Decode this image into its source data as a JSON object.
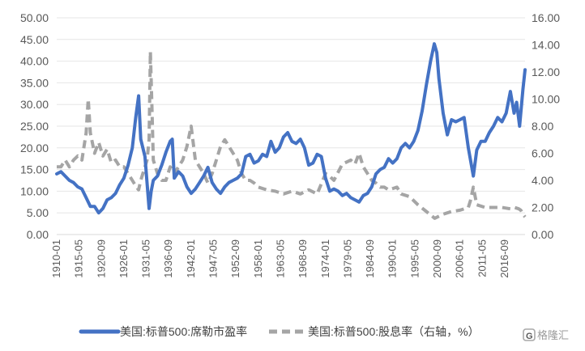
{
  "chart_data": {
    "type": "line",
    "y_left": {
      "ylim": [
        0,
        50
      ],
      "ticks": [
        "0.00",
        "5.00",
        "10.00",
        "15.00",
        "20.00",
        "25.00",
        "30.00",
        "35.00",
        "40.00",
        "45.00",
        "50.00"
      ]
    },
    "y_right": {
      "ylim": [
        0,
        16
      ],
      "ticks": [
        "0.00",
        "2.00",
        "4.00",
        "6.00",
        "8.00",
        "10.00",
        "12.00",
        "14.00",
        "16.00"
      ]
    },
    "x_ticks": [
      "1910-01",
      "1915-05",
      "1920-09",
      "1926-01",
      "1931-05",
      "1936-09",
      "1942-01",
      "1947-05",
      "1952-09",
      "1958-01",
      "1963-05",
      "1968-09",
      "1974-01",
      "1979-05",
      "1984-09",
      "1990-01",
      "1995-05",
      "2000-09",
      "2006-01",
      "2011-05",
      "2016-09"
    ],
    "xlim": [
      1910.0,
      2021.5
    ],
    "grid": "horizontal",
    "legend_position": "bottom",
    "series": [
      {
        "name": "美国:标普500:席勒市盈率",
        "axis": "left",
        "color": "#4472C4",
        "style": "solid",
        "x": [
          1910.0,
          1911.0,
          1912.0,
          1913.0,
          1914.0,
          1915.0,
          1916.0,
          1917.0,
          1918.0,
          1919.0,
          1920.0,
          1921.0,
          1922.0,
          1923.0,
          1924.0,
          1925.0,
          1926.0,
          1927.0,
          1928.0,
          1928.8,
          1929.5,
          1930.0,
          1931.0,
          1932.0,
          1932.5,
          1933.0,
          1934.0,
          1935.0,
          1936.0,
          1937.0,
          1937.5,
          1938.0,
          1939.0,
          1940.0,
          1941.0,
          1942.0,
          1943.0,
          1944.0,
          1945.0,
          1946.0,
          1947.0,
          1948.0,
          1949.0,
          1950.0,
          1951.0,
          1952.0,
          1953.0,
          1954.0,
          1955.0,
          1956.0,
          1957.0,
          1958.0,
          1959.0,
          1960.0,
          1961.0,
          1962.0,
          1963.0,
          1964.0,
          1965.0,
          1966.0,
          1967.0,
          1968.0,
          1969.0,
          1970.0,
          1971.0,
          1972.0,
          1973.0,
          1974.0,
          1975.0,
          1976.0,
          1977.0,
          1978.0,
          1979.0,
          1980.0,
          1981.0,
          1982.0,
          1983.0,
          1984.0,
          1985.0,
          1986.0,
          1987.0,
          1988.0,
          1989.0,
          1990.0,
          1991.0,
          1992.0,
          1993.0,
          1994.0,
          1995.0,
          1996.0,
          1997.0,
          1998.0,
          1999.0,
          1999.9,
          2000.5,
          2001.0,
          2002.0,
          2003.0,
          2004.0,
          2005.0,
          2006.0,
          2007.0,
          2008.0,
          2009.2,
          2010.0,
          2011.0,
          2012.0,
          2013.0,
          2014.0,
          2015.0,
          2016.0,
          2017.0,
          2018.0,
          2018.9,
          2019.5,
          2020.2,
          2021.0,
          2021.5
        ],
        "y": [
          14.0,
          14.5,
          13.5,
          12.5,
          12.0,
          11.0,
          10.5,
          8.5,
          6.5,
          6.5,
          5.0,
          6.0,
          8.0,
          8.5,
          9.5,
          11.5,
          13.0,
          16.0,
          20.0,
          27.0,
          32.0,
          22.0,
          18.0,
          6.0,
          10.0,
          12.5,
          13.5,
          16.0,
          19.0,
          21.5,
          22.0,
          13.0,
          14.5,
          13.5,
          11.0,
          9.5,
          10.5,
          12.0,
          13.5,
          15.5,
          12.0,
          10.5,
          9.5,
          11.0,
          12.0,
          12.5,
          13.0,
          14.0,
          18.0,
          18.5,
          16.5,
          17.0,
          18.5,
          18.0,
          21.5,
          19.0,
          20.0,
          22.5,
          23.5,
          21.5,
          21.0,
          22.0,
          20.0,
          16.0,
          16.5,
          18.5,
          18.0,
          13.0,
          10.0,
          10.5,
          10.0,
          9.0,
          9.5,
          8.5,
          8.0,
          7.5,
          9.0,
          9.5,
          11.0,
          14.0,
          15.0,
          15.5,
          17.5,
          16.5,
          17.5,
          20.0,
          21.0,
          20.0,
          21.5,
          24.0,
          28.5,
          34.5,
          40.0,
          44.0,
          42.0,
          36.0,
          28.0,
          23.0,
          26.5,
          26.0,
          26.5,
          27.0,
          20.0,
          13.5,
          19.5,
          21.5,
          21.5,
          23.5,
          25.0,
          27.0,
          26.0,
          28.0,
          33.0,
          28.0,
          30.5,
          25.0,
          33.5,
          38.0
        ]
      },
      {
        "name": "美国:标普500:股息率（右轴，%）",
        "axis": "right",
        "color": "#A5A5A5",
        "style": "dashed",
        "x": [
          1910.0,
          1911.0,
          1912.0,
          1913.0,
          1914.0,
          1915.0,
          1916.0,
          1917.0,
          1917.5,
          1918.0,
          1919.0,
          1920.0,
          1921.0,
          1922.0,
          1923.0,
          1924.0,
          1925.0,
          1926.0,
          1927.0,
          1928.0,
          1929.0,
          1929.5,
          1930.0,
          1931.0,
          1931.5,
          1932.0,
          1932.3,
          1932.7,
          1933.0,
          1934.0,
          1935.0,
          1936.0,
          1937.0,
          1938.0,
          1939.0,
          1940.0,
          1941.0,
          1942.0,
          1943.0,
          1944.0,
          1945.0,
          1946.0,
          1947.0,
          1948.0,
          1949.0,
          1950.0,
          1951.0,
          1952.0,
          1953.0,
          1954.0,
          1955.0,
          1956.0,
          1957.0,
          1958.0,
          1960.0,
          1962.0,
          1964.0,
          1966.0,
          1968.0,
          1970.0,
          1972.0,
          1974.0,
          1975.0,
          1976.0,
          1978.0,
          1980.0,
          1981.0,
          1982.0,
          1983.0,
          1984.0,
          1985.0,
          1986.0,
          1987.0,
          1988.0,
          1989.0,
          1990.0,
          1991.0,
          1992.0,
          1994.0,
          1996.0,
          1998.0,
          2000.0,
          2002.0,
          2004.0,
          2006.0,
          2008.0,
          2008.5,
          2009.2,
          2010.0,
          2012.0,
          2014.0,
          2016.0,
          2018.0,
          2019.0,
          2020.0,
          2020.5,
          2021.0,
          2021.5
        ],
        "y": [
          5.0,
          5.0,
          5.5,
          5.0,
          5.5,
          5.8,
          5.5,
          7.5,
          10.0,
          7.5,
          6.0,
          6.8,
          5.8,
          6.3,
          5.3,
          5.5,
          5.0,
          5.0,
          4.5,
          4.0,
          3.5,
          3.3,
          4.0,
          5.0,
          5.5,
          7.0,
          13.5,
          9.0,
          5.5,
          4.5,
          4.0,
          4.0,
          5.0,
          4.5,
          5.0,
          5.5,
          6.5,
          8.0,
          5.5,
          5.0,
          4.5,
          3.8,
          4.5,
          5.5,
          6.5,
          7.0,
          6.5,
          6.0,
          5.5,
          4.5,
          4.0,
          4.0,
          3.8,
          3.5,
          3.3,
          3.2,
          3.0,
          3.2,
          3.0,
          3.3,
          3.0,
          4.5,
          4.3,
          4.0,
          5.2,
          5.5,
          5.2,
          6.0,
          5.0,
          4.5,
          4.0,
          3.8,
          3.5,
          3.5,
          3.3,
          3.4,
          3.5,
          3.0,
          2.8,
          2.2,
          1.7,
          1.2,
          1.5,
          1.7,
          1.8,
          2.0,
          2.5,
          3.5,
          2.2,
          2.0,
          2.0,
          2.0,
          1.9,
          2.0,
          1.9,
          1.8,
          1.5,
          1.3
        ]
      }
    ]
  },
  "watermark": "格隆汇"
}
